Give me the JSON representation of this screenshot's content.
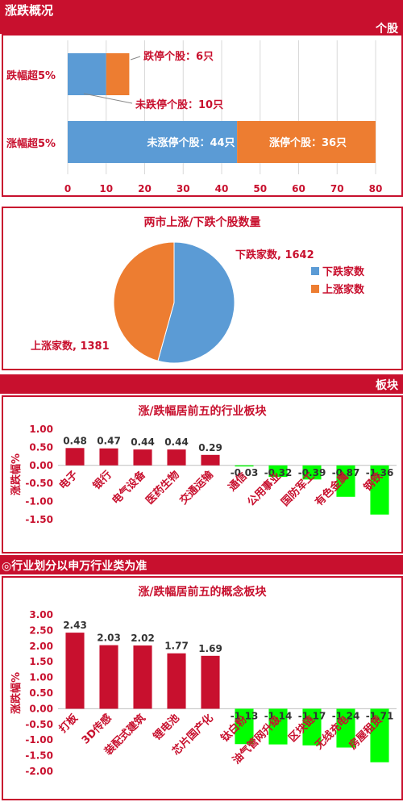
{
  "header": {
    "title": "涨跌概况",
    "section_stocks": "个股",
    "section_sectors": "板块"
  },
  "footnote": "◎行业划分以申万行业类为准",
  "chart_data": [
    {
      "type": "bar",
      "orientation": "horizontal",
      "stacked": true,
      "categories": [
        "跌幅超5%",
        "涨幅超5%"
      ],
      "series": [
        {
          "values": [
            10,
            44
          ],
          "color": "#5b9bd5"
        },
        {
          "values": [
            6,
            36
          ],
          "color": "#ed7d31"
        }
      ],
      "data_labels": [
        {
          "text": "跌停个股：6只"
        },
        {
          "text": "未跌停个股：10只"
        },
        {
          "text": "未涨停个股：44只"
        },
        {
          "text": "涨停个股：36只"
        }
      ],
      "xlim": [
        0,
        80
      ],
      "xticks": [
        "0",
        "10",
        "20",
        "30",
        "40",
        "50",
        "60",
        "70",
        "80"
      ],
      "grid": true
    },
    {
      "type": "pie",
      "title": "两市上涨/下跌个股数量",
      "slices": [
        {
          "name": "下跌家数",
          "value": 1642,
          "label": "下跌家数, 1642",
          "color": "#5b9bd5"
        },
        {
          "name": "上涨家数",
          "value": 1381,
          "label": "上涨家数, 1381",
          "color": "#ed7d31"
        }
      ],
      "legend": "right"
    },
    {
      "type": "bar",
      "title": "涨/跌幅居前五的行业板块",
      "ylabel": "涨跌幅%",
      "categories": [
        "电子",
        "银行",
        "电气设备",
        "医药生物",
        "交通运输",
        "通信",
        "公用事业",
        "国防军工",
        "有色金属",
        "钢铁"
      ],
      "values": [
        0.48,
        0.47,
        0.44,
        0.44,
        0.29,
        -0.03,
        -0.32,
        -0.39,
        -0.87,
        -1.36
      ],
      "value_labels": [
        "0.48",
        "0.47",
        "0.44",
        "0.44",
        "0.29",
        "-0.03",
        "-0.32",
        "-0.39",
        "-0.87",
        "-1.36"
      ],
      "ylim": [
        -1.5,
        1.0
      ],
      "yticks": [
        "1.00",
        "0.50",
        "0.00",
        "-0.50",
        "-1.00",
        "-1.50"
      ],
      "colors": {
        "up": "#c8102e",
        "down": "#00ff00"
      }
    },
    {
      "type": "bar",
      "title": "涨/跌幅居前五的概念板块",
      "ylabel": "涨跌幅%",
      "categories": [
        "打板",
        "3D传感",
        "装配式建筑",
        "锂电池",
        "芯片国产化",
        "钛白粉",
        "油气管网升级",
        "区块链",
        "无线充电",
        "房屋租赁"
      ],
      "values": [
        2.43,
        2.03,
        2.02,
        1.77,
        1.69,
        -1.13,
        -1.14,
        -1.17,
        -1.24,
        -1.71
      ],
      "value_labels": [
        "2.43",
        "2.03",
        "2.02",
        "1.77",
        "1.69",
        "-1.13",
        "-1.14",
        "-1.17",
        "-1.24",
        "-1.71"
      ],
      "ylim": [
        -2.0,
        3.0
      ],
      "yticks": [
        "3.00",
        "2.50",
        "2.00",
        "1.50",
        "1.00",
        "0.50",
        "0.00",
        "-0.50",
        "-1.00",
        "-1.50",
        "-2.00"
      ],
      "colors": {
        "up": "#c8102e",
        "down": "#00ff00"
      }
    }
  ]
}
